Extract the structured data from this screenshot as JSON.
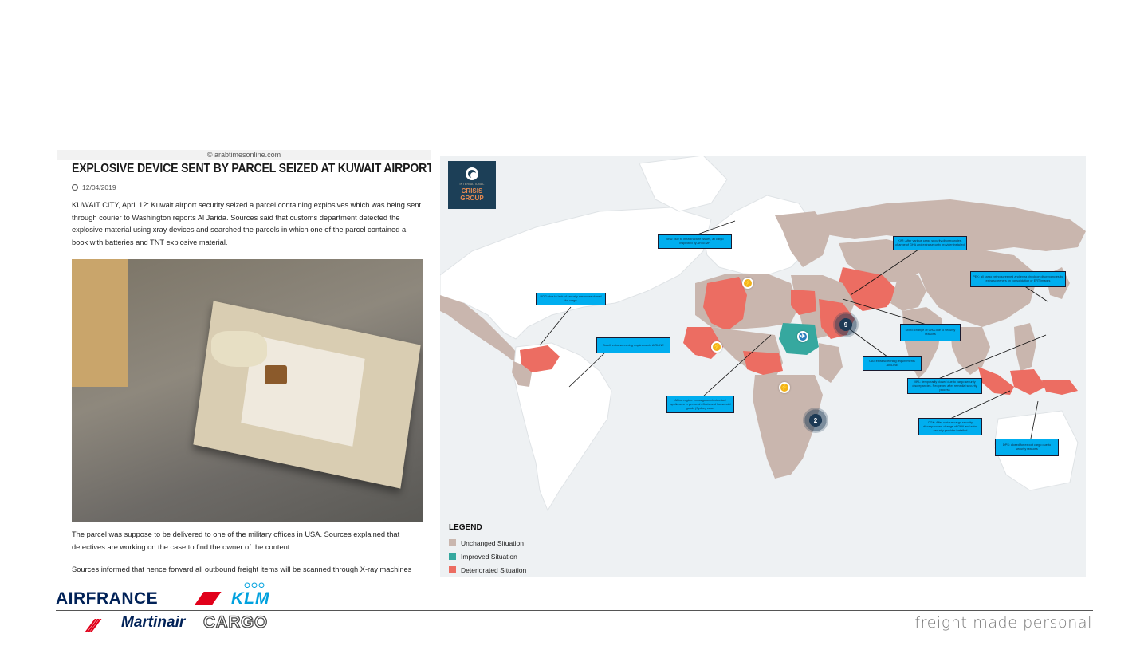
{
  "article": {
    "source": "© arabtimesonline.com",
    "headline": "Explosive device sent by parcel seized at Kuwait airport",
    "date": "12/04/2019",
    "paragraph1": "KUWAIT CITY, April 12: Kuwait airport security seized a parcel containing explosives which was being sent through courier to Washington reports Al Jarida. Sources said that customs department detected the explosive material using xray devices and searched the parcels in which one of the parcel contained a book with batteries and TNT explosive material.",
    "paragraph2": "The parcel was suppose to be delivered to one of the military offices in USA. Sources explained that detectives are working on the case to find the owner of the content.",
    "paragraph3": "Sources informed that hence forward all outbound freight items will be scanned through X-ray machines"
  },
  "map": {
    "logo": {
      "line1": "INTERNATIONAL",
      "line2": "CRISIS",
      "line3": "GROUP"
    },
    "callouts": [
      "BRU: due to infrastructure issues, all cargo inspected by ARKEMP",
      "KWI: After various cargo security discrepancies, change of GHA and extra security provider installed",
      "PEK: all cargo being screened and extra check on discrepancies by extra screeners on consolidation or ERT images",
      "BOG: due to lack of security measures closed for cargo",
      "Brazil: extra screening requirements AIRLINE",
      "DMM: change of GHA due to security reasons",
      "CAI: extra screening requirements AIRLINE",
      "Africa region: embargo on electronical appliances in personal effects and household goods (Sydney case)",
      "MNL: temporarily closed due to cargo security discrepancies. Reopened after remedial security process",
      "CGK: After various cargo security discrepancies, change of GHA and extra security provider installed",
      "DPS: closed for export cargo due to security reasons"
    ],
    "clusters": [
      "9",
      "2"
    ],
    "legend": {
      "title": "LEGEND",
      "items": [
        {
          "label": "Unchanged Situation",
          "color": "#c9b6ae"
        },
        {
          "label": "Improved Situation",
          "color": "#36a89f"
        },
        {
          "label": "Deteriorated Situation",
          "color": "#ec6d62"
        }
      ]
    }
  },
  "footer": {
    "airfrance": "AIRFRANCE",
    "klm": "KLM",
    "klm_crown": "ⵔⵔⵔ",
    "martinair_mark": "///",
    "martinair": "Martinair",
    "cargo": "CARGO",
    "tagline": "freight made personal"
  }
}
